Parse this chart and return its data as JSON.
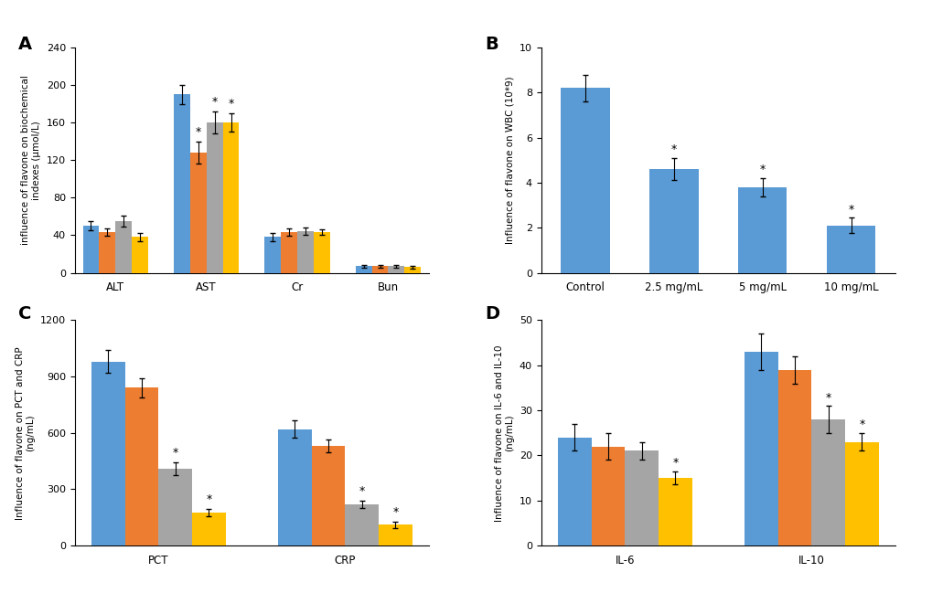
{
  "A": {
    "title_label": "A",
    "ylabel": "influence of flavone on biochemical\nindexes (μmol/L)",
    "ylim": [
      0,
      240
    ],
    "yticks": [
      0,
      40,
      80,
      120,
      160,
      200,
      240
    ],
    "groups": [
      "ALT",
      "AST",
      "Cr",
      "Bun"
    ],
    "values": {
      "Control": [
        50,
        190,
        38,
        7
      ],
      "2.5 mg/mL": [
        43,
        128,
        43,
        7
      ],
      "5 mg/mL": [
        55,
        160,
        44,
        7
      ],
      "10 mg/mL": [
        38,
        160,
        43,
        6
      ]
    },
    "errors": {
      "Control": [
        5,
        10,
        4,
        1.5
      ],
      "2.5 mg/mL": [
        4,
        12,
        4,
        1.5
      ],
      "5 mg/mL": [
        6,
        12,
        4,
        1.5
      ],
      "10 mg/mL": [
        4,
        10,
        3,
        1.5
      ]
    },
    "sig": {
      "AST": [
        "2.5 mg/mL",
        "5 mg/mL",
        "10 mg/mL"
      ]
    }
  },
  "B": {
    "title_label": "B",
    "ylabel": "Influence of flavone on WBC (10*9)",
    "ylim": [
      0,
      10
    ],
    "yticks": [
      0,
      2,
      4,
      6,
      8,
      10
    ],
    "groups": [
      "Control",
      "2.5 mg/mL",
      "5 mg/mL",
      "10 mg/mL"
    ],
    "values": [
      8.2,
      4.6,
      3.8,
      2.1
    ],
    "errors": [
      0.6,
      0.5,
      0.4,
      0.35
    ],
    "sig": [
      "2.5 mg/mL",
      "5 mg/mL",
      "10 mg/mL"
    ]
  },
  "C": {
    "title_label": "C",
    "ylabel": "Influence of flavone on PCT and CRP\n(ng/mL)",
    "ylim": [
      0,
      1200
    ],
    "yticks": [
      0,
      300,
      600,
      900,
      1200
    ],
    "groups": [
      "PCT",
      "CRP"
    ],
    "values": {
      "Control": [
        980,
        620
      ],
      "2.5 mg/mL": [
        840,
        530
      ],
      "5 mg/mL": [
        410,
        220
      ],
      "10 mg/mL": [
        175,
        110
      ]
    },
    "errors": {
      "Control": [
        60,
        45
      ],
      "2.5 mg/mL": [
        50,
        35
      ],
      "5 mg/mL": [
        35,
        20
      ],
      "10 mg/mL": [
        20,
        15
      ]
    },
    "sig": {
      "PCT": [
        "5 mg/mL",
        "10 mg/mL"
      ],
      "CRP": [
        "5 mg/mL",
        "10 mg/mL"
      ]
    }
  },
  "D": {
    "title_label": "D",
    "ylabel": "Influence of flavone on IL-6 and IL-10\n(ng/mL)",
    "ylim": [
      0,
      50
    ],
    "yticks": [
      0,
      10,
      20,
      30,
      40,
      50
    ],
    "groups": [
      "IL-6",
      "IL-10"
    ],
    "values": {
      "Control": [
        24,
        43
      ],
      "2.5 mg/mL": [
        22,
        39
      ],
      "5 mg/mL": [
        21,
        28
      ],
      "10 mg/mL": [
        15,
        23
      ]
    },
    "errors": {
      "Control": [
        3,
        4
      ],
      "2.5 mg/mL": [
        3,
        3
      ],
      "5 mg/mL": [
        2,
        3
      ],
      "10 mg/mL": [
        1.5,
        2
      ]
    },
    "sig": {
      "IL-6": [
        "10 mg/mL"
      ],
      "IL-10": [
        "5 mg/mL",
        "10 mg/mL"
      ]
    }
  },
  "colors": {
    "Control": "#5B9BD5",
    "2.5 mg/mL": "#ED7D31",
    "5 mg/mL": "#A5A5A5",
    "10 mg/mL": "#FFC000"
  },
  "legend_labels": [
    "Control",
    "2.5 mg/mL",
    "5 mg/mL",
    "10 mg/mL"
  ],
  "bar_width": 0.18,
  "background_color": "#FFFFFF"
}
